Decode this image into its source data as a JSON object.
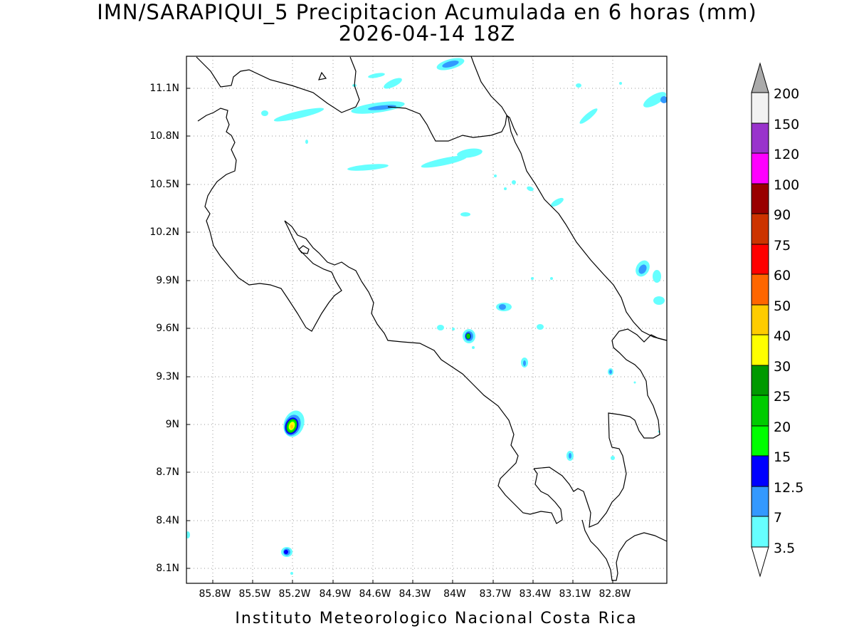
{
  "title": {
    "line1": "IMN/SARAPIQUI_5 Precipitacion Acumulada en 6 horas (mm)",
    "line2": "2026-04-14 18Z"
  },
  "footer": "Instituto Meteorologico Nacional Costa Rica",
  "map": {
    "region": "Costa Rica",
    "lon_range": [
      -86.1,
      -82.5
    ],
    "lat_range": [
      8.0,
      11.3
    ],
    "lat_ticks": [
      "11.1N",
      "10.8N",
      "10.5N",
      "10.2N",
      "9.9N",
      "9.6N",
      "9.3N",
      "9N",
      "8.7N",
      "8.4N",
      "8.1N"
    ],
    "lon_ticks": [
      "85.8W",
      "85.5W",
      "85.2W",
      "84.9W",
      "84.6W",
      "84.3W",
      "84W",
      "83.7W",
      "83.4W",
      "83.1W",
      "82.8W"
    ],
    "grid": true
  },
  "colorbar": {
    "labels": [
      "200",
      "150",
      "120",
      "100",
      "90",
      "75",
      "60",
      "50",
      "40",
      "30",
      "25",
      "20",
      "15",
      "12.5",
      "7",
      "3.5"
    ],
    "colors": [
      "#f2f2f2",
      "#9933cc",
      "#ff00ff",
      "#990000",
      "#cc3300",
      "#ff0000",
      "#ff6600",
      "#ffcc00",
      "#ffff00",
      "#009900",
      "#00cc00",
      "#00ff00",
      "#0000ff",
      "#3399ff",
      "#66ffff"
    ],
    "top_arrow_color": "#aaaaaa",
    "bottom_arrow_color": "#ffffff"
  },
  "precip_colors": {
    "c3_5": "#66ffff",
    "c7": "#3399ff",
    "c12_5": "#0000ff",
    "c15": "#00ff00",
    "c20": "#00cc00",
    "c25": "#009900",
    "c40": "#ffff00",
    "c50": "#ffcc00"
  }
}
